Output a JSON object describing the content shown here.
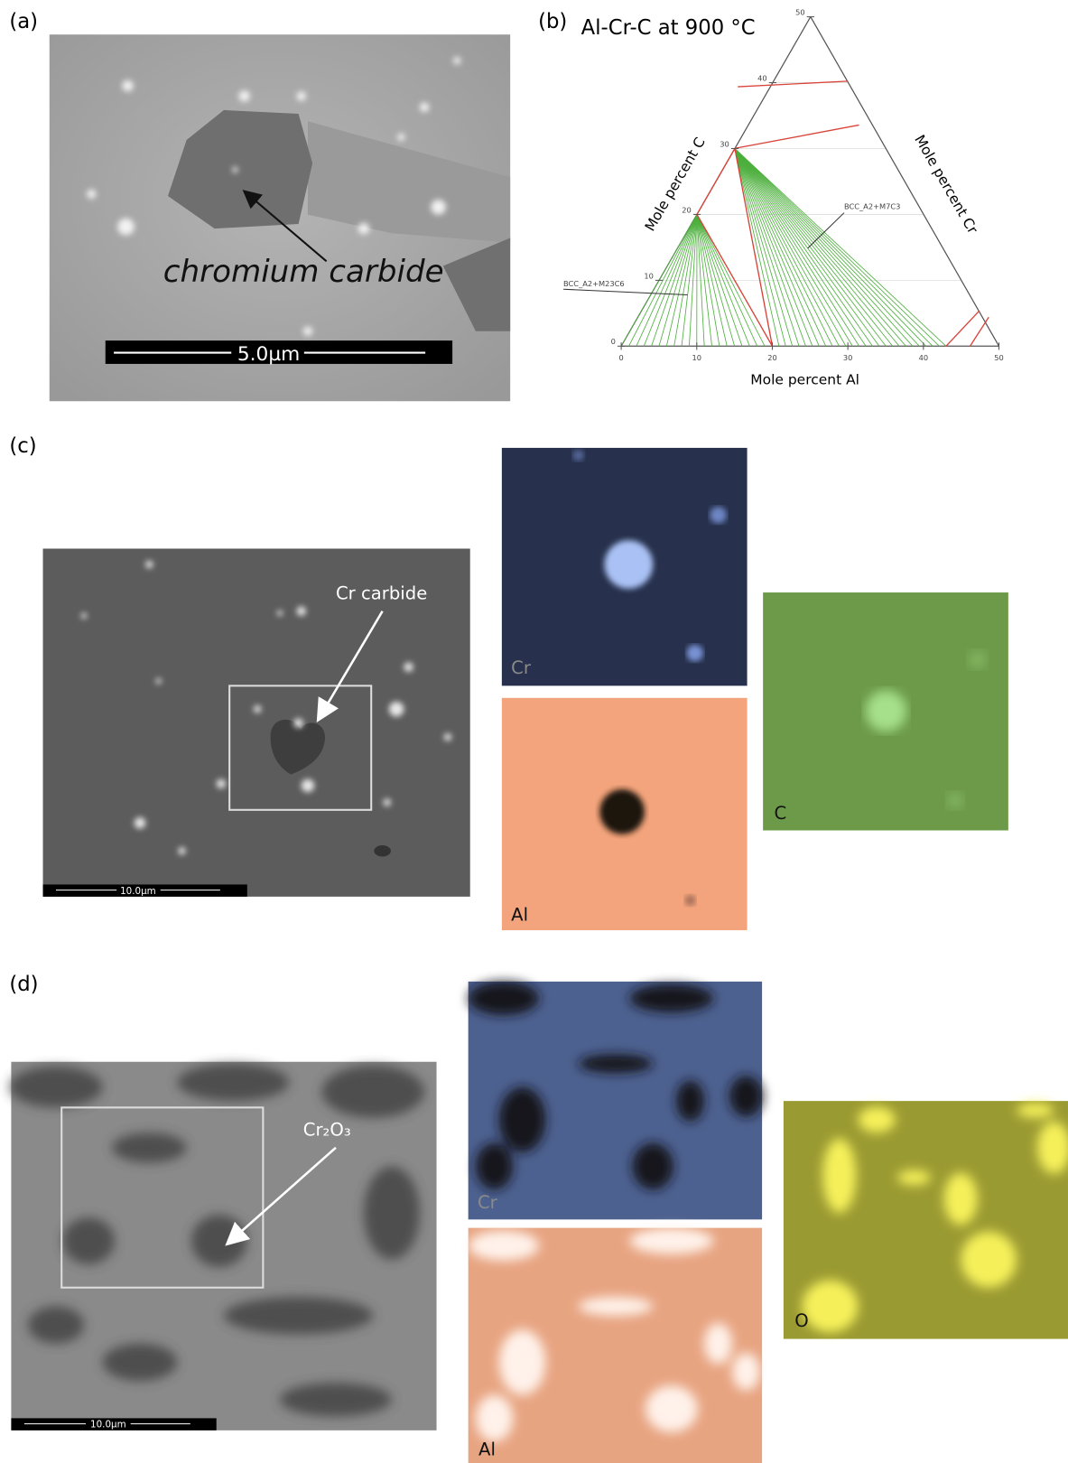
{
  "panels": {
    "a": {
      "label": "(a)",
      "annotation": "chromium carbide",
      "scale_bar": "5.0µm"
    },
    "b": {
      "label": "(b)",
      "title": "Al-Cr-C at 900 °C",
      "x_axis": "Mole percent Al",
      "left_axis": "Mole percent C",
      "right_axis": "Mole percent Cr",
      "region_labels": [
        "BCC_A2+M23C6",
        "BCC_A2+M7C3"
      ],
      "bottom_ticks": [
        0,
        10,
        20,
        30,
        40,
        50
      ],
      "left_ticks": [
        0,
        10,
        20,
        30,
        40,
        50
      ]
    },
    "c": {
      "label": "(c)",
      "annotation": "Cr carbide",
      "scale_bar": "10.0µm",
      "maps": [
        "Cr",
        "Al",
        "C"
      ]
    },
    "d": {
      "label": "(d)",
      "annotation": "Cr₂O₃",
      "scale_bar": "10.0µm",
      "maps": [
        "Cr",
        "Al",
        "O"
      ]
    }
  }
}
